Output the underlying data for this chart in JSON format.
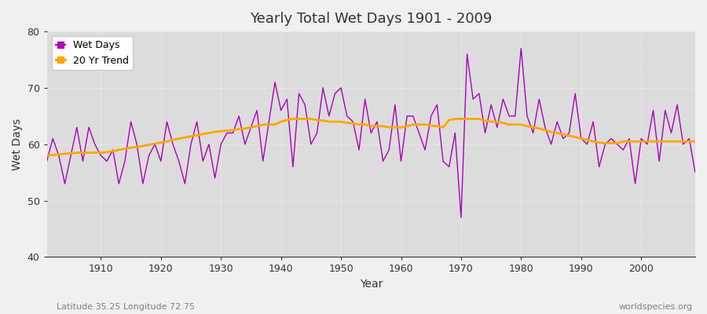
{
  "title": "Yearly Total Wet Days 1901 - 2009",
  "xlabel": "Year",
  "ylabel": "Wet Days",
  "subtitle_left": "Latitude 35.25 Longitude 72.75",
  "subtitle_right": "worldspecies.org",
  "ylim": [
    40,
    80
  ],
  "xlim": [
    1901,
    2009
  ],
  "yticks": [
    40,
    50,
    60,
    70,
    80
  ],
  "xticks": [
    1910,
    1920,
    1930,
    1940,
    1950,
    1960,
    1970,
    1980,
    1990,
    2000
  ],
  "wet_days_color": "#AA00BB",
  "trend_color": "#FFA500",
  "bg_color": "#DCDCDC",
  "fig_color": "#F0F0F0",
  "legend_labels": [
    "Wet Days",
    "20 Yr Trend"
  ],
  "years": [
    1901,
    1902,
    1903,
    1904,
    1905,
    1906,
    1907,
    1908,
    1909,
    1910,
    1911,
    1912,
    1913,
    1914,
    1915,
    1916,
    1917,
    1918,
    1919,
    1920,
    1921,
    1922,
    1923,
    1924,
    1925,
    1926,
    1927,
    1928,
    1929,
    1930,
    1931,
    1932,
    1933,
    1934,
    1935,
    1936,
    1937,
    1938,
    1939,
    1940,
    1941,
    1942,
    1943,
    1944,
    1945,
    1946,
    1947,
    1948,
    1949,
    1950,
    1951,
    1952,
    1953,
    1954,
    1955,
    1956,
    1957,
    1958,
    1959,
    1960,
    1961,
    1962,
    1963,
    1964,
    1965,
    1966,
    1967,
    1968,
    1969,
    1970,
    1971,
    1972,
    1973,
    1974,
    1975,
    1976,
    1977,
    1978,
    1979,
    1980,
    1981,
    1982,
    1983,
    1984,
    1985,
    1986,
    1987,
    1988,
    1989,
    1990,
    1991,
    1992,
    1993,
    1994,
    1995,
    1996,
    1997,
    1998,
    1999,
    2000,
    2001,
    2002,
    2003,
    2004,
    2005,
    2006,
    2007,
    2008,
    2009
  ],
  "wet_days": [
    57,
    61,
    58,
    53,
    58,
    63,
    57,
    63,
    60,
    58,
    57,
    59,
    53,
    57,
    64,
    60,
    53,
    58,
    60,
    57,
    64,
    60,
    57,
    53,
    60,
    64,
    57,
    60,
    54,
    60,
    62,
    62,
    65,
    60,
    63,
    66,
    57,
    64,
    71,
    66,
    68,
    56,
    69,
    67,
    60,
    62,
    70,
    65,
    69,
    70,
    65,
    64,
    59,
    68,
    62,
    64,
    57,
    59,
    67,
    57,
    65,
    65,
    62,
    59,
    65,
    67,
    57,
    56,
    62,
    47,
    76,
    68,
    69,
    62,
    67,
    63,
    68,
    65,
    65,
    77,
    65,
    62,
    68,
    63,
    60,
    64,
    61,
    62,
    69,
    61,
    60,
    64,
    56,
    60,
    61,
    60,
    59,
    61,
    53,
    61,
    60,
    66,
    57,
    66,
    62,
    67,
    60,
    61,
    55
  ],
  "trend_years": [
    1901,
    1902,
    1903,
    1904,
    1905,
    1906,
    1907,
    1908,
    1909,
    1910,
    1911,
    1912,
    1913,
    1914,
    1915,
    1916,
    1917,
    1918,
    1919,
    1920,
    1921,
    1922,
    1923,
    1924,
    1925,
    1926,
    1927,
    1928,
    1929,
    1930,
    1931,
    1932,
    1933,
    1934,
    1935,
    1936,
    1937,
    1938,
    1939,
    1940,
    1941,
    1942,
    1943,
    1944,
    1945,
    1946,
    1947,
    1948,
    1949,
    1950,
    1951,
    1952,
    1953,
    1954,
    1955,
    1956,
    1957,
    1958,
    1959,
    1960,
    1961,
    1962,
    1963,
    1964,
    1965,
    1966,
    1967,
    1968,
    1969,
    1970,
    1971,
    1972,
    1973,
    1974,
    1975,
    1976,
    1977,
    1978,
    1979,
    1980,
    1981,
    1982,
    1983,
    1984,
    1985,
    1986,
    1987,
    1988,
    1989,
    1990,
    1991,
    1992,
    1993,
    1994,
    1995,
    1996,
    1997,
    1998,
    1999,
    2000,
    2001,
    2002,
    2003,
    2004,
    2005,
    2006,
    2007,
    2008,
    2009
  ],
  "trend_values": [
    58.0,
    58.1,
    58.2,
    58.3,
    58.4,
    58.5,
    58.5,
    58.5,
    58.5,
    58.5,
    58.6,
    58.8,
    59.0,
    59.2,
    59.4,
    59.5,
    59.7,
    59.9,
    60.1,
    60.3,
    60.5,
    60.8,
    61.0,
    61.2,
    61.4,
    61.6,
    61.8,
    62.0,
    62.2,
    62.3,
    62.4,
    62.5,
    62.7,
    62.8,
    63.0,
    63.2,
    63.5,
    63.5,
    63.5,
    64.0,
    64.3,
    64.5,
    64.5,
    64.5,
    64.5,
    64.3,
    64.2,
    64.0,
    64.0,
    64.0,
    63.8,
    63.7,
    63.5,
    63.5,
    63.3,
    63.2,
    63.2,
    63.0,
    63.0,
    63.0,
    63.2,
    63.5,
    63.5,
    63.5,
    63.3,
    63.2,
    63.0,
    64.3,
    64.5,
    64.5,
    64.5,
    64.5,
    64.5,
    64.2,
    64.0,
    64.0,
    63.8,
    63.5,
    63.5,
    63.5,
    63.2,
    63.0,
    62.8,
    62.5,
    62.2,
    62.0,
    61.8,
    61.5,
    61.3,
    61.0,
    60.8,
    60.5,
    60.3,
    60.2,
    60.2,
    60.2,
    60.5,
    60.5,
    60.5,
    60.5,
    60.5,
    60.5,
    60.5,
    60.5,
    60.5,
    60.5,
    60.5,
    60.5,
    60.5
  ]
}
